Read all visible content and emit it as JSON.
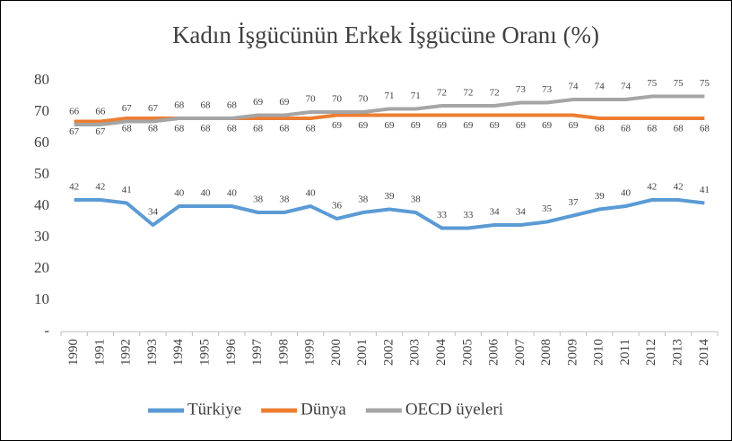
{
  "chart_data": {
    "type": "line",
    "title": "Kadın İşgücünün Erkek İşgücüne Oranı (%)",
    "categories": [
      "1990",
      "1991",
      "1992",
      "1993",
      "1994",
      "1995",
      "1996",
      "1997",
      "1998",
      "1999",
      "2000",
      "2001",
      "2002",
      "2003",
      "2004",
      "2005",
      "2006",
      "2007",
      "2008",
      "2009",
      "2010",
      "2011",
      "2012",
      "2013",
      "2014"
    ],
    "series": [
      {
        "name": "Türkiye",
        "color": "#5b9bd5",
        "values": [
          42,
          42,
          41,
          34,
          40,
          40,
          40,
          38,
          38,
          40,
          36,
          38,
          39,
          38,
          33,
          33,
          34,
          34,
          35,
          37,
          39,
          40,
          42,
          42,
          41
        ]
      },
      {
        "name": "Dünya",
        "color": "#ed7d31",
        "values": [
          67,
          67,
          68,
          68,
          68,
          68,
          68,
          68,
          68,
          68,
          69,
          69,
          69,
          69,
          69,
          69,
          69,
          69,
          69,
          69,
          68,
          68,
          68,
          68,
          68
        ]
      },
      {
        "name": "OECD üyeleri",
        "color": "#a5a5a5",
        "values": [
          66,
          66,
          67,
          67,
          68,
          68,
          68,
          69,
          69,
          70,
          70,
          70,
          71,
          71,
          72,
          72,
          72,
          73,
          73,
          74,
          74,
          74,
          75,
          75,
          75
        ]
      }
    ],
    "ylim": [
      0,
      80
    ],
    "yticks": [
      {
        "value": 0,
        "label": "-"
      },
      10,
      20,
      30,
      40,
      50,
      60,
      70,
      80
    ],
    "grid": false,
    "legend": "bottom"
  }
}
